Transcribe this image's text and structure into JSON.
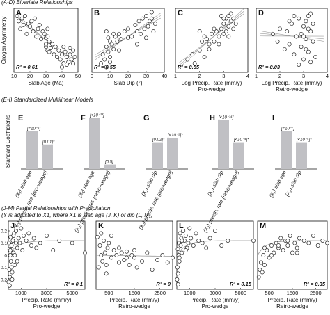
{
  "sections": {
    "ad_title": "(A-D) Bivariate Relationships",
    "ei_title": "(E-I) Standardized Multilinear Models",
    "jm_title_1": "(J-M) Partial Relationships with Precipitation",
    "jm_title_2": "(Y is adjusted to X1, where X1 is slab age (J, K) or dip (L, M))"
  },
  "colors": {
    "marker_stroke": "#222222",
    "bar_fill": "#c0c0c4",
    "fit_line": "#9a9a9a"
  },
  "chart_data": [
    {
      "panel": "A",
      "type": "scatter",
      "xlabel": "Slab Age (Ma)",
      "ylabel": "Orogen Asymmetry",
      "xlim": [
        10,
        50
      ],
      "ylim": [
        -0.22,
        0.28
      ],
      "xticks": [
        10,
        20,
        30,
        40,
        50
      ],
      "r2": "R² = 0.61",
      "x": [
        12,
        13,
        14,
        15,
        16,
        17,
        18,
        19,
        20,
        21,
        22,
        23,
        24,
        25,
        26,
        27,
        28,
        29,
        30,
        30,
        31,
        31,
        32,
        33,
        34,
        35,
        36,
        37,
        38,
        39,
        40,
        41,
        42,
        43,
        44,
        45,
        46,
        47,
        48,
        30,
        31,
        32,
        40,
        41,
        43,
        45,
        47
      ],
      "y": [
        0.22,
        0.18,
        0.12,
        0.2,
        0.15,
        0.22,
        0.08,
        0.16,
        0.14,
        0.18,
        0.1,
        0.2,
        0.06,
        0.12,
        0.15,
        0.04,
        0.1,
        0.08,
        0.05,
        -0.02,
        0.12,
        -0.05,
        0.02,
        -0.03,
        0.0,
        -0.08,
        -0.02,
        -0.1,
        -0.05,
        -0.12,
        -0.08,
        -0.15,
        -0.06,
        -0.1,
        -0.14,
        -0.08,
        -0.12,
        -0.05,
        -0.1,
        0.0,
        0.06,
        -0.06,
        -0.18,
        -0.02,
        -0.16,
        -0.03,
        -0.15
      ]
    },
    {
      "panel": "B",
      "type": "scatter",
      "xlabel": "Slab Dip (°)",
      "ylabel": "",
      "xlim": [
        0,
        40
      ],
      "ylim": [
        -0.22,
        0.28
      ],
      "xticks": [
        0,
        10,
        20,
        30,
        40
      ],
      "r2": "R² = 0.55",
      "x": [
        5,
        6,
        7,
        8,
        8,
        9,
        9,
        10,
        10,
        11,
        12,
        13,
        14,
        15,
        16,
        18,
        20,
        22,
        24,
        25,
        26,
        27,
        28,
        29,
        30,
        31,
        32,
        33,
        34,
        35,
        8,
        10,
        12,
        15,
        20,
        25,
        30,
        33
      ],
      "y": [
        -0.15,
        -0.08,
        -0.12,
        -0.02,
        -0.18,
        0.05,
        -0.06,
        0.02,
        -0.1,
        0.0,
        -0.04,
        0.06,
        0.02,
        0.08,
        0.04,
        0.1,
        0.12,
        0.06,
        0.15,
        0.1,
        0.18,
        0.08,
        0.2,
        0.12,
        0.22,
        0.14,
        0.18,
        0.25,
        0.1,
        0.16,
        0.1,
        -0.14,
        0.08,
        -0.05,
        0.05,
        0.0,
        0.05,
        0.2
      ]
    },
    {
      "panel": "C",
      "type": "scatter",
      "xlabel": "Log Precip. Rate (mm/y)",
      "xlabel2": "Pro-wedge",
      "ylabel": "",
      "xlim": [
        1,
        4
      ],
      "ylim": [
        -0.22,
        0.28
      ],
      "xticks": [
        1,
        2,
        3,
        4
      ],
      "r2": "R² = 0.55",
      "x": [
        1.5,
        1.7,
        1.8,
        2.0,
        2.1,
        2.2,
        2.3,
        2.4,
        2.5,
        2.6,
        2.7,
        2.8,
        2.9,
        3.0,
        3.0,
        3.1,
        3.1,
        3.2,
        3.2,
        3.3,
        3.3,
        3.4,
        3.4,
        3.5,
        2.2,
        2.4,
        2.6,
        2.8,
        3.0,
        3.2,
        2.0,
        2.9
      ],
      "y": [
        -0.12,
        -0.08,
        -0.15,
        -0.05,
        0.02,
        -0.1,
        0.04,
        0.0,
        0.08,
        0.02,
        0.1,
        0.06,
        0.12,
        0.16,
        0.08,
        0.2,
        0.1,
        0.22,
        0.14,
        0.18,
        0.24,
        0.12,
        0.2,
        0.16,
        0.06,
        -0.04,
        0.12,
        0.0,
        0.2,
        0.06,
        0.1,
        0.22
      ]
    },
    {
      "panel": "D",
      "type": "scatter",
      "xlabel": "Log Precip. Rate (mm/y)",
      "xlabel2": "Retro-wedge",
      "ylabel": "",
      "xlim": [
        1,
        4
      ],
      "ylim": [
        -0.22,
        0.28
      ],
      "xticks": [
        1,
        2,
        3,
        4
      ],
      "r2": "R² = 0.03",
      "x": [
        1.7,
        1.9,
        2.0,
        2.2,
        2.3,
        2.4,
        2.5,
        2.6,
        2.7,
        2.8,
        2.9,
        3.0,
        3.0,
        3.1,
        3.1,
        3.2,
        3.2,
        3.3,
        3.3,
        3.4,
        3.4,
        3.5,
        2.6,
        2.8,
        3.0,
        3.2,
        2.4,
        3.1,
        3.3,
        2.9
      ],
      "y": [
        0.08,
        0.02,
        0.12,
        -0.04,
        0.1,
        0.0,
        0.16,
        -0.08,
        0.06,
        0.2,
        -0.02,
        0.14,
        -0.12,
        0.18,
        0.04,
        0.22,
        -0.06,
        0.1,
        -0.14,
        0.16,
        0.02,
        -0.1,
        0.22,
        -0.16,
        0.06,
        0.12,
        0.18,
        -0.04,
        0.24,
        0.08
      ]
    },
    {
      "panel": "E",
      "type": "bar",
      "ylabel": "Standard Coefficients",
      "categories": [
        "(X₁) slab age",
        "(X₂) precip. rate (pro-wedge)"
      ],
      "values": [
        0.85,
        0.55
      ],
      "labels": [
        "[<10⁻⁶]",
        "[0.01]*"
      ]
    },
    {
      "panel": "F",
      "type": "bar",
      "categories": [
        "(X₁) slab age",
        "(X₂) precip. rate (retro-wedge)"
      ],
      "values": [
        1.15,
        0.1
      ],
      "labels": [
        "[<10⁻¹³]",
        "[0.5]"
      ]
    },
    {
      "panel": "G",
      "type": "bar",
      "categories": [
        "(X₁) slab dip",
        "(X₂) precip. rate (pro-wedge)"
      ],
      "values": [
        0.6,
        0.7
      ],
      "labels": [
        "[0.02]*",
        "[<10⁻⁵]*"
      ]
    },
    {
      "panel": "H",
      "type": "bar",
      "categories": [
        "(X₁) slab dip",
        "(X₂) precip. rate (retro-wedge)"
      ],
      "values": [
        1.1,
        0.6
      ],
      "labels": [
        "[<10⁻¹⁴]",
        "[<10⁻⁴]*"
      ]
    },
    {
      "panel": "I",
      "type": "bar",
      "categories": [
        "(X₁) slab age",
        "(X₂) slab dip"
      ],
      "values": [
        0.85,
        0.6
      ],
      "labels": [
        "[<10⁻⁷]",
        "[<10⁻⁴]*"
      ]
    },
    {
      "panel": "J",
      "type": "scatter",
      "xlabel": "Precip. Rate (mm/y)",
      "xlabel2": "Pro-wedge",
      "ylabel": "Adj. Orogen Asymmetry",
      "xlim": [
        0,
        6000
      ],
      "ylim": [
        -0.28,
        0.28
      ],
      "xticks": [
        1000,
        3000,
        5000
      ],
      "yticks": [
        -0.2,
        -0.1,
        0,
        0.1,
        0.2
      ],
      "r2": "R² = 0.1",
      "x": [
        20,
        50,
        80,
        100,
        120,
        150,
        180,
        200,
        250,
        300,
        350,
        400,
        450,
        500,
        600,
        700,
        800,
        900,
        1000,
        1100,
        1200,
        1400,
        1600,
        1800,
        2000,
        2200,
        2500,
        3000,
        3500,
        4000,
        5000,
        6000,
        100,
        300,
        500,
        700,
        150,
        250,
        400,
        600
      ],
      "y": [
        -0.22,
        0.1,
        -0.12,
        0.05,
        -0.18,
        0.0,
        0.15,
        -0.05,
        0.08,
        -0.14,
        0.12,
        0.02,
        0.18,
        -0.08,
        0.2,
        0.06,
        0.14,
        0.1,
        0.22,
        0.04,
        0.16,
        0.12,
        0.18,
        0.08,
        0.14,
        0.06,
        0.1,
        0.16,
        0.04,
        0.12,
        0.1,
        0.02,
        -0.25,
        -0.2,
        0.0,
        -0.05,
        0.04,
        -0.1,
        0.16,
        0.1
      ]
    },
    {
      "panel": "K",
      "type": "scatter",
      "xlabel": "Precip. Rate (mm/y)",
      "xlabel2": "Retro-wedge",
      "ylabel": "",
      "xlim": [
        0,
        3000
      ],
      "ylim": [
        -0.28,
        0.28
      ],
      "xticks": [
        500,
        1500,
        2500
      ],
      "r2": "R² = 0",
      "x": [
        50,
        100,
        150,
        200,
        250,
        300,
        350,
        400,
        450,
        500,
        600,
        700,
        800,
        900,
        1000,
        1100,
        1200,
        1300,
        1400,
        1500,
        1600,
        1800,
        2000,
        2200,
        2400,
        2600,
        2800,
        3000,
        200,
        400,
        600,
        900,
        1200,
        1500
      ],
      "y": [
        0.15,
        -0.1,
        0.08,
        0.18,
        -0.05,
        0.12,
        0.02,
        -0.15,
        0.06,
        0.1,
        -0.02,
        0.04,
        0.0,
        -0.06,
        0.02,
        -0.04,
        0.03,
        -0.08,
        0.0,
        -0.02,
        -0.1,
        -0.05,
        0.02,
        -0.12,
        -0.04,
        0.0,
        -0.06,
        -0.02,
        0.0,
        -0.08,
        0.16,
        0.06,
        -0.02,
        0.04
      ]
    },
    {
      "panel": "L",
      "type": "scatter",
      "xlabel": "Precip. Rate (mm/y)",
      "xlabel2": "Pro-wedge",
      "ylabel": "",
      "xlim": [
        0,
        6000
      ],
      "ylim": [
        -0.28,
        0.28
      ],
      "xticks": [
        1000,
        3000,
        5000
      ],
      "r2": "R² = 0.15",
      "x": [
        20,
        50,
        80,
        100,
        130,
        160,
        200,
        250,
        300,
        350,
        400,
        500,
        600,
        700,
        800,
        900,
        1000,
        1100,
        1300,
        1500,
        1700,
        2000,
        2300,
        2600,
        3000,
        3500,
        4000,
        6000,
        100,
        200,
        400,
        700
      ],
      "y": [
        -0.2,
        -0.1,
        0.05,
        -0.15,
        0.0,
        0.1,
        -0.05,
        0.18,
        0.08,
        0.14,
        0.02,
        0.2,
        0.12,
        0.16,
        0.06,
        0.1,
        0.22,
        0.14,
        0.08,
        0.18,
        0.12,
        0.1,
        0.06,
        0.14,
        0.2,
        0.08,
        0.12,
        0.12,
        -0.24,
        -0.02,
        0.12,
        0.04
      ]
    },
    {
      "panel": "M",
      "type": "scatter",
      "xlabel": "Precip. Rate (mm/y)",
      "xlabel2": "Retro-wedge",
      "ylabel": "",
      "xlim": [
        0,
        3000
      ],
      "ylim": [
        -0.28,
        0.28
      ],
      "xticks": [
        500,
        1500,
        2500
      ],
      "r2": "R² = 0.35",
      "x": [
        50,
        100,
        150,
        200,
        250,
        300,
        400,
        500,
        600,
        700,
        800,
        900,
        1000,
        1100,
        1200,
        1300,
        1400,
        1500,
        1600,
        1700,
        1800,
        2000,
        2200,
        2400,
        2600,
        2800,
        3000,
        300,
        600,
        900,
        1300,
        1700
      ],
      "y": [
        -0.18,
        -0.12,
        -0.06,
        -0.14,
        0.0,
        -0.08,
        0.04,
        -0.02,
        0.08,
        0.02,
        0.1,
        0.06,
        0.14,
        0.04,
        0.12,
        0.08,
        0.16,
        0.02,
        0.1,
        0.06,
        0.14,
        0.12,
        0.1,
        0.16,
        0.08,
        0.12,
        0.1,
        0.06,
        0.0,
        0.08,
        0.12,
        0.02
      ]
    }
  ]
}
